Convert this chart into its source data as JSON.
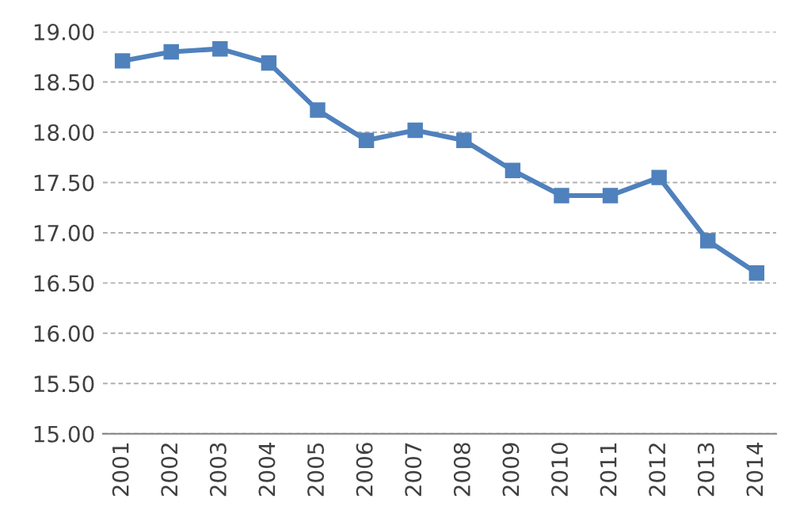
{
  "chart_data": {
    "type": "line",
    "categories": [
      "2001",
      "2002",
      "2003",
      "2004",
      "2005",
      "2006",
      "2007",
      "2008",
      "2009",
      "2010",
      "2011",
      "2012",
      "2013",
      "2014"
    ],
    "series": [
      {
        "color": "#4f81bd",
        "values": [
          18.71,
          18.8,
          18.83,
          18.69,
          18.22,
          17.92,
          18.02,
          17.92,
          17.62,
          17.37,
          17.37,
          17.55,
          16.92,
          16.6
        ]
      }
    ],
    "ylim": [
      15,
      19
    ],
    "yticks": [
      {
        "value": 15,
        "label": "15.00"
      },
      {
        "value": 15.5,
        "label": "15.50"
      },
      {
        "value": 16,
        "label": "16.00"
      },
      {
        "value": 16.5,
        "label": "16.50"
      },
      {
        "value": 17,
        "label": "17.00"
      },
      {
        "value": 17.5,
        "label": "17.50"
      },
      {
        "value": 18,
        "label": "18.00"
      },
      {
        "value": 18.5,
        "label": "18.50"
      },
      {
        "value": 19,
        "label": "19.00"
      }
    ],
    "grid": "y",
    "legend": false,
    "marker": "square",
    "line_style": "solid"
  }
}
